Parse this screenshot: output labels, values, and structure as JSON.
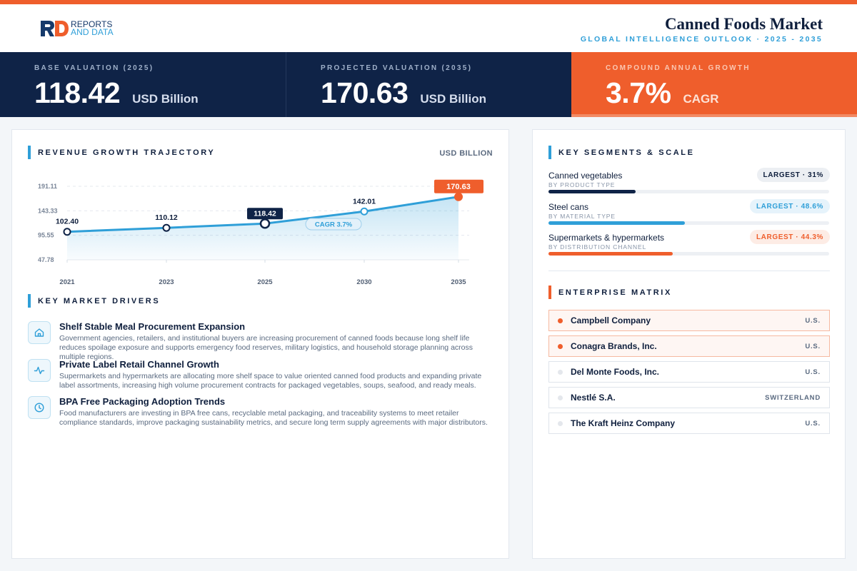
{
  "brand": {
    "logo_letters": "RD",
    "line1": "REPORTS",
    "line2": "AND DATA"
  },
  "header": {
    "title": "Canned Foods Market",
    "subtitle": "GLOBAL INTELLIGENCE OUTLOOK  ·  2025 - 2035"
  },
  "colors": {
    "navy": "#0f2347",
    "accent": "#ef5e2c",
    "blue": "#2f9fd8"
  },
  "stats": [
    {
      "label": "BASE VALUATION (2025)",
      "value": "118.42",
      "unit": "USD Billion"
    },
    {
      "label": "PROJECTED VALUATION (2035)",
      "value": "170.63",
      "unit": "USD Billion"
    },
    {
      "label": "COMPOUND ANNUAL GROWTH",
      "value": "3.7%",
      "unit": "CAGR"
    }
  ],
  "chart_section": {
    "title": "REVENUE GROWTH TRAJECTORY",
    "unit": "USD BILLION"
  },
  "chart_data": {
    "type": "area",
    "title": "REVENUE GROWTH TRAJECTORY",
    "ylabel": "USD BILLION",
    "x": [
      "2021",
      "2023",
      "2025",
      "2030",
      "2035"
    ],
    "values": [
      102.4,
      110.12,
      118.42,
      142.01,
      170.63
    ],
    "data_labels": [
      "102.40",
      "110.12",
      "118.42",
      "142.01",
      "170.63"
    ],
    "y_ticks": [
      "191.11",
      "143.33",
      "95.55",
      "47.78"
    ],
    "ylim": [
      47.78,
      191.11
    ],
    "highlight": {
      "base": "2025",
      "projected": "2035"
    },
    "annotation": "CAGR 3.7%",
    "grid": true
  },
  "drivers_section": {
    "title": "KEY MARKET DRIVERS"
  },
  "drivers": [
    {
      "icon": "home-icon",
      "title": "Shelf Stable Meal Procurement Expansion",
      "desc": "Government agencies, retailers, and institutional buyers are increasing procurement of canned foods because long shelf life reduces spoilage exposure and supports emergency food reserves, military logistics, and household storage planning across multiple regions."
    },
    {
      "icon": "activity-icon",
      "title": "Private Label Retail Channel Growth",
      "desc": "Supermarkets and hypermarkets are allocating more shelf space to value oriented canned food products and expanding private label assortments, increasing high volume procurement contracts for packaged vegetables, soups, seafood, and ready meals."
    },
    {
      "icon": "clock-icon",
      "title": "BPA Free Packaging Adoption Trends",
      "desc": "Food manufacturers are investing in BPA free cans, recyclable metal packaging, and traceability systems to meet retailer compliance standards, improve packaging sustainability metrics, and secure long term supply agreements with major distributors."
    }
  ],
  "segments_section": {
    "title": "KEY SEGMENTS & SCALE"
  },
  "segments": [
    {
      "name": "Canned vegetables",
      "category": "BY PRODUCT TYPE",
      "badge": "LARGEST · 31%",
      "share": 0.31,
      "color": "#0f2347",
      "badge_bg": "#eceff3",
      "badge_fg": "#0f1f3d"
    },
    {
      "name": "Steel cans",
      "category": "BY MATERIAL TYPE",
      "badge": "LARGEST · 48.6%",
      "share": 0.486,
      "color": "#2f9fd8",
      "badge_bg": "#e6f3fb",
      "badge_fg": "#2f9fd8"
    },
    {
      "name": "Supermarkets & hypermarkets",
      "category": "BY DISTRIBUTION CHANNEL",
      "badge": "LARGEST · 44.3%",
      "share": 0.443,
      "color": "#ef5e2c",
      "badge_bg": "#fdece5",
      "badge_fg": "#ef5e2c"
    }
  ],
  "matrix_section": {
    "title": "ENTERPRISE MATRIX"
  },
  "companies": [
    {
      "name": "Campbell Company",
      "country": "U.S.",
      "highlight": true
    },
    {
      "name": "Conagra Brands, Inc.",
      "country": "U.S.",
      "highlight": true
    },
    {
      "name": "Del Monte Foods, Inc.",
      "country": "U.S.",
      "highlight": false
    },
    {
      "name": "Nestlé S.A.",
      "country": "SWITZERLAND",
      "highlight": false
    },
    {
      "name": "The Kraft Heinz Company",
      "country": "U.S.",
      "highlight": false
    }
  ]
}
